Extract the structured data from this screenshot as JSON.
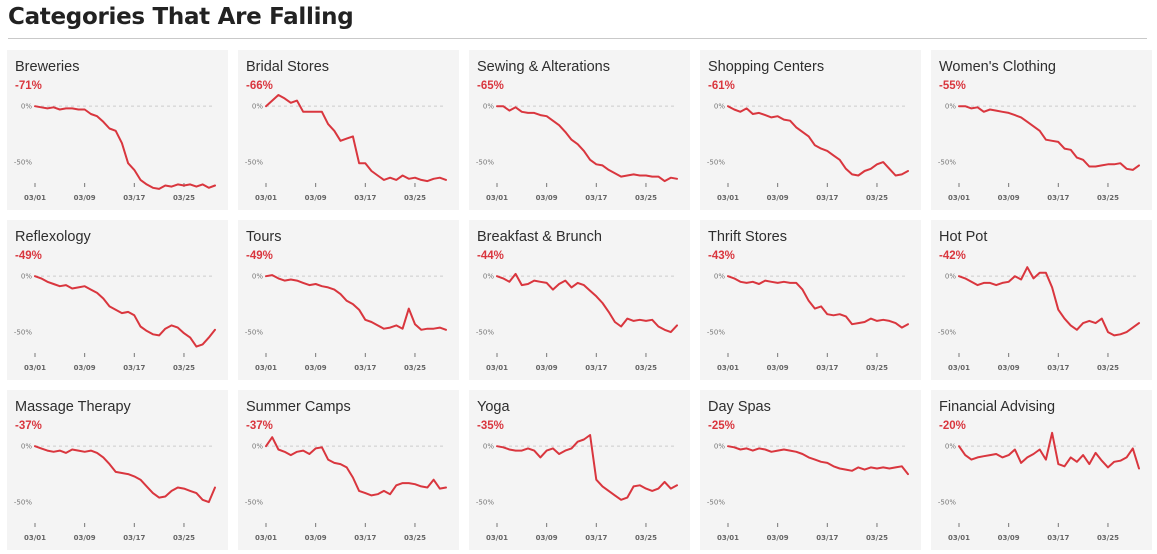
{
  "page": {
    "title": "Categories That Are Falling"
  },
  "colors": {
    "line": "#d9363e",
    "card_bg": "#f4f4f4",
    "zero_line": "#cccccc"
  },
  "chart_data": {
    "type": "line",
    "layout": "small-multiples-grid",
    "grid": {
      "rows": 3,
      "cols": 5
    },
    "ylim": [
      -75,
      10
    ],
    "y_ticks": [
      {
        "value": 0,
        "label": "0%"
      },
      {
        "value": -50,
        "label": "-50%"
      }
    ],
    "x_ticks": [
      {
        "value": 0,
        "label": "03/01"
      },
      {
        "value": 8,
        "label": "03/09"
      },
      {
        "value": 16,
        "label": "03/17"
      },
      {
        "value": 24,
        "label": "03/25"
      }
    ],
    "x_range": [
      0,
      29
    ],
    "panels": [
      {
        "name": "Breweries",
        "change": "-71%",
        "values": [
          0,
          -1,
          -2,
          -1,
          -3,
          -2,
          -2,
          -3,
          -3,
          -7,
          -9,
          -14,
          -20,
          -22,
          -33,
          -51,
          -57,
          -66,
          -70,
          -73,
          -74,
          -71,
          -72,
          -70,
          -71,
          -70,
          -72,
          -70,
          -73,
          -71
        ]
      },
      {
        "name": "Bridal Stores",
        "change": "-66%",
        "values": [
          0,
          5,
          10,
          7,
          3,
          5,
          -5,
          -5,
          -5,
          -5,
          -16,
          -22,
          -31,
          -29,
          -27,
          -51,
          -51,
          -58,
          -62,
          -66,
          -64,
          -66,
          -62,
          -65,
          -64,
          -66,
          -67,
          -65,
          -64,
          -66
        ]
      },
      {
        "name": "Sewing & Alterations",
        "change": "-65%",
        "values": [
          0,
          0,
          -4,
          -1,
          -5,
          -6,
          -6,
          -8,
          -9,
          -13,
          -17,
          -23,
          -30,
          -34,
          -40,
          -48,
          -52,
          -53,
          -57,
          -60,
          -63,
          -62,
          -61,
          -62,
          -62,
          -63,
          -63,
          -67,
          -64,
          -65
        ]
      },
      {
        "name": "Shopping Centers",
        "change": "-61%",
        "values": [
          0,
          -3,
          -5,
          -2,
          -7,
          -6,
          -8,
          -10,
          -9,
          -12,
          -13,
          -19,
          -23,
          -27,
          -35,
          -38,
          -40,
          -44,
          -48,
          -56,
          -61,
          -62,
          -58,
          -56,
          -52,
          -50,
          -56,
          -62,
          -61,
          -58
        ]
      },
      {
        "name": "Women's Clothing",
        "change": "-55%",
        "values": [
          0,
          0,
          -2,
          -1,
          -5,
          -3,
          -4,
          -5,
          -6,
          -8,
          -10,
          -14,
          -18,
          -22,
          -30,
          -31,
          -32,
          -38,
          -39,
          -46,
          -48,
          -54,
          -54,
          -53,
          -52,
          -52,
          -51,
          -56,
          -57,
          -53
        ]
      }
    ],
    "panels_row2": [
      {
        "name": "Reflexology",
        "change": "-49%",
        "values": [
          0,
          -2,
          -5,
          -7,
          -9,
          -8,
          -11,
          -10,
          -9,
          -12,
          -15,
          -20,
          -27,
          -30,
          -33,
          -32,
          -35,
          -45,
          -49,
          -52,
          -53,
          -47,
          -44,
          -46,
          -51,
          -55,
          -63,
          -61,
          -55,
          -48
        ]
      },
      {
        "name": "Tours",
        "change": "-49%",
        "values": [
          0,
          1,
          -2,
          -4,
          -3,
          -4,
          -6,
          -8,
          -7,
          -9,
          -10,
          -12,
          -16,
          -22,
          -25,
          -30,
          -39,
          -41,
          -44,
          -47,
          -46,
          -44,
          -47,
          -29,
          -43,
          -48,
          -47,
          -47,
          -46,
          -48
        ]
      },
      {
        "name": "Breakfast & Brunch",
        "change": "-44%",
        "values": [
          0,
          -2,
          -5,
          2,
          -8,
          -7,
          -4,
          -5,
          -6,
          -12,
          -7,
          -4,
          -10,
          -6,
          -8,
          -13,
          -18,
          -24,
          -32,
          -41,
          -45,
          -38,
          -40,
          -39,
          -40,
          -39,
          -45,
          -48,
          -50,
          -44
        ]
      },
      {
        "name": "Thrift Stores",
        "change": "-43%",
        "values": [
          0,
          -2,
          -5,
          -6,
          -5,
          -7,
          -4,
          -5,
          -6,
          -5,
          -6,
          -6,
          -12,
          -22,
          -29,
          -27,
          -34,
          -35,
          -34,
          -36,
          -43,
          -42,
          -41,
          -38,
          -40,
          -39,
          -40,
          -42,
          -46,
          -43
        ]
      },
      {
        "name": "Hot Pot",
        "change": "-42%",
        "values": [
          0,
          -2,
          -5,
          -8,
          -6,
          -6,
          -8,
          -6,
          -5,
          0,
          -3,
          8,
          -2,
          3,
          3,
          -10,
          -30,
          -38,
          -44,
          -48,
          -42,
          -40,
          -42,
          -38,
          -50,
          -53,
          -52,
          -50,
          -46,
          -42
        ]
      }
    ],
    "panels_row3": [
      {
        "name": "Massage Therapy",
        "change": "-37%",
        "values": [
          0,
          -2,
          -4,
          -5,
          -4,
          -6,
          -3,
          -4,
          -5,
          -4,
          -6,
          -10,
          -16,
          -23,
          -24,
          -25,
          -27,
          -30,
          -36,
          -42,
          -46,
          -45,
          -40,
          -37,
          -38,
          -40,
          -42,
          -48,
          -50,
          -37
        ]
      },
      {
        "name": "Summer Camps",
        "change": "-37%",
        "values": [
          0,
          8,
          -3,
          -5,
          -8,
          -5,
          -4,
          -7,
          -2,
          -1,
          -12,
          -15,
          -16,
          -19,
          -28,
          -40,
          -42,
          -44,
          -43,
          -40,
          -43,
          -35,
          -33,
          -33,
          -34,
          -36,
          -37,
          -30,
          -38,
          -37
        ]
      },
      {
        "name": "Yoga",
        "change": "-35%",
        "values": [
          0,
          -1,
          -3,
          -4,
          -4,
          -2,
          -4,
          -10,
          -4,
          -2,
          -7,
          -4,
          -2,
          4,
          6,
          10,
          -30,
          -36,
          -40,
          -44,
          -48,
          -46,
          -36,
          -35,
          -38,
          -40,
          -38,
          -32,
          -38,
          -35
        ]
      },
      {
        "name": "Day Spas",
        "change": "-25%",
        "values": [
          0,
          -1,
          -3,
          -2,
          -4,
          -2,
          -3,
          -5,
          -4,
          -3,
          -4,
          -5,
          -7,
          -10,
          -12,
          -14,
          -15,
          -18,
          -20,
          -21,
          -22,
          -19,
          -21,
          -19,
          -20,
          -19,
          -20,
          -19,
          -18,
          -25
        ]
      },
      {
        "name": "Financial Advising",
        "change": "-20%",
        "values": [
          0,
          -8,
          -12,
          -10,
          -9,
          -8,
          -7,
          -10,
          -8,
          -3,
          -15,
          -10,
          -7,
          -3,
          -12,
          12,
          -16,
          -18,
          -10,
          -14,
          -8,
          -16,
          -6,
          -13,
          -19,
          -14,
          -13,
          -10,
          -2,
          -20
        ]
      }
    ]
  }
}
